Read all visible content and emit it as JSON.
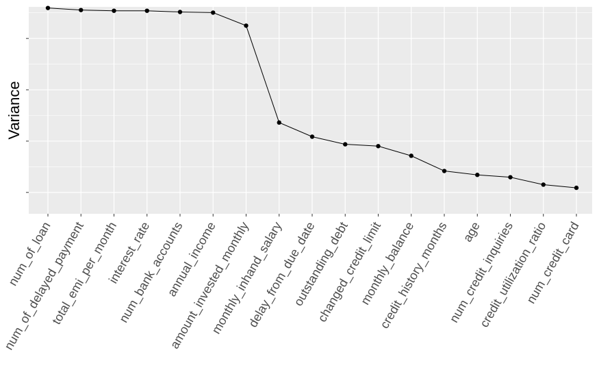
{
  "chart_data": {
    "type": "line",
    "title": "",
    "xlabel": "",
    "ylabel": "Variance",
    "categories": [
      "num_of_loan",
      "num_of_delayed_payment",
      "total_emi_per_month",
      "interest_rate",
      "num_bank_accounts",
      "annual_income",
      "amount_invested_monthly",
      "monthly_inhand_salary",
      "delay_from_due_date",
      "outstanding_debt",
      "changed_credit_limit",
      "monthly_balance",
      "credit_history_months",
      "age",
      "num_credit_inquiries",
      "credit_utilization_ratio",
      "num_credit_card"
    ],
    "values": [
      0.9985,
      0.9885,
      0.985,
      0.985,
      0.979,
      0.976,
      0.9125,
      0.4405,
      0.3715,
      0.3345,
      0.3255,
      0.2785,
      0.2045,
      0.1855,
      0.174,
      0.138,
      0.1225
    ],
    "ylim": [
      -0.004,
      1.004
    ],
    "y_tick_values": [
      0.1,
      0.35,
      0.6,
      0.85
    ],
    "y_tick_labels_visible": false,
    "grid": true,
    "legend": "none",
    "colors": {
      "panel_background": "#ebebeb",
      "grid_major": "#ffffff",
      "line": "#000000",
      "point": "#000000",
      "tick_label": "#4d4d4d"
    }
  }
}
